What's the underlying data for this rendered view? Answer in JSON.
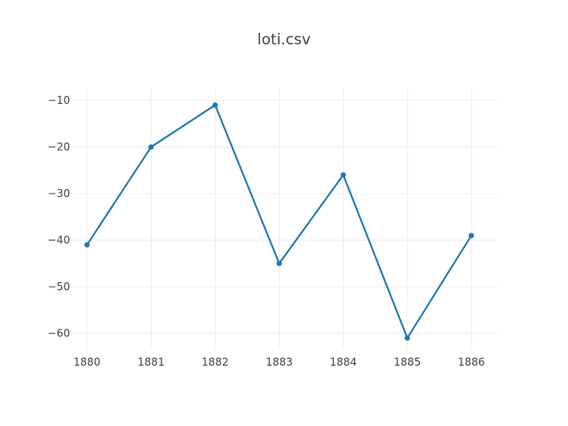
{
  "chart_data": {
    "type": "line",
    "title": "loti.csv",
    "xlabel": "",
    "ylabel": "",
    "x": [
      1880,
      1881,
      1882,
      1883,
      1884,
      1885,
      1886
    ],
    "x_tick_labels": [
      "1880",
      "1881",
      "1882",
      "1883",
      "1884",
      "1885",
      "1886"
    ],
    "y_ticks": [
      -10,
      -20,
      -30,
      -40,
      -50,
      -60
    ],
    "y_tick_labels": [
      "−10",
      "−20",
      "−30",
      "−40",
      "−50",
      "−60"
    ],
    "xlim": [
      1879.75,
      1886.4
    ],
    "ylim": [
      -63.5,
      -7.5
    ],
    "grid": true,
    "series": [
      {
        "values": [
          -41,
          -20,
          -11,
          -45,
          -26,
          -61,
          -39
        ],
        "color": "#1f77b4",
        "marker": "circle"
      }
    ]
  }
}
